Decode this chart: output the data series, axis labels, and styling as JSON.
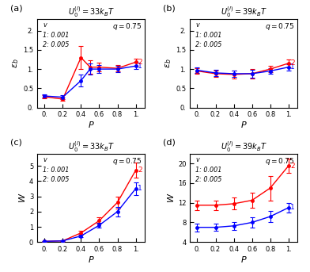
{
  "panels": [
    {
      "label": "a",
      "title": "$U_0^{(l)}=33k_BT$",
      "ylabel": "$\\varepsilon_b$",
      "ylim": [
        0,
        2.3
      ],
      "yticks": [
        0.0,
        0.5,
        1.0,
        1.5,
        2.0
      ],
      "yticklabels": [
        "0.",
        "0.5",
        "1.",
        "1.5",
        "2."
      ],
      "xlabel": "$P$",
      "x": [
        0.0,
        0.2,
        0.4,
        0.5,
        0.6,
        0.8,
        1.0
      ],
      "blue_y": [
        0.3,
        0.27,
        0.7,
        1.0,
        1.0,
        1.0,
        1.08
      ],
      "blue_err": [
        0.05,
        0.05,
        0.15,
        0.15,
        0.1,
        0.08,
        0.08
      ],
      "red_y": [
        0.28,
        0.22,
        1.3,
        1.05,
        1.05,
        1.02,
        1.18
      ],
      "red_err": [
        0.05,
        0.05,
        0.3,
        0.18,
        0.12,
        0.08,
        0.1
      ],
      "q_label": "$q = 0.75$",
      "v_text": "$v$\n1: 0.001\n2: 0.005"
    },
    {
      "label": "b",
      "title": "$U_0^{(l)}=39k_BT$",
      "ylabel": "$\\varepsilon_b$",
      "ylim": [
        0,
        2.3
      ],
      "yticks": [
        0.0,
        0.5,
        1.0,
        1.5,
        2.0
      ],
      "yticklabels": [
        "0.",
        "0.5",
        "1.",
        "1.5",
        "2."
      ],
      "xlabel": "$P$",
      "x": [
        0.0,
        0.2,
        0.4,
        0.6,
        0.8,
        1.0
      ],
      "blue_y": [
        0.97,
        0.9,
        0.88,
        0.88,
        0.95,
        1.05
      ],
      "blue_err": [
        0.08,
        0.08,
        0.08,
        0.1,
        0.08,
        0.08
      ],
      "red_y": [
        0.95,
        0.88,
        0.86,
        0.88,
        1.0,
        1.15
      ],
      "red_err": [
        0.08,
        0.08,
        0.1,
        0.12,
        0.08,
        0.1
      ],
      "q_label": "$q = 0.75$",
      "v_text": "$v$\n1: 0.001\n2: 0.005"
    },
    {
      "label": "c",
      "title": "$U_0^{(l)}=33k_BT$",
      "ylabel": "$W$",
      "ylim": [
        0,
        5.8
      ],
      "yticks": [
        0,
        1,
        2,
        3,
        4,
        5
      ],
      "yticklabels": [
        "0",
        "1",
        "2",
        "3",
        "4",
        "5"
      ],
      "xlabel": "$P$",
      "x": [
        0.0,
        0.2,
        0.4,
        0.6,
        0.8,
        1.0
      ],
      "blue_y": [
        0.05,
        0.08,
        0.4,
        1.1,
        2.0,
        3.5
      ],
      "blue_err": [
        0.02,
        0.02,
        0.1,
        0.15,
        0.3,
        0.4
      ],
      "red_y": [
        0.05,
        0.08,
        0.6,
        1.4,
        2.6,
        4.7
      ],
      "red_err": [
        0.02,
        0.02,
        0.12,
        0.2,
        0.4,
        0.5
      ],
      "q_label": "$q = 0.75$",
      "v_text": "$v$\n1: 0.001\n2: 0.005"
    },
    {
      "label": "d",
      "title": "$U_0^{(l)}=39k_BT$",
      "ylabel": "$W$",
      "ylim": [
        4,
        22
      ],
      "yticks": [
        4,
        8,
        12,
        16,
        20
      ],
      "yticklabels": [
        "4",
        "8",
        "12",
        "16",
        "20"
      ],
      "xlabel": "$P$",
      "x": [
        0.0,
        0.2,
        0.4,
        0.6,
        0.8,
        1.0
      ],
      "blue_y": [
        7.0,
        7.0,
        7.3,
        8.0,
        9.2,
        11.0
      ],
      "blue_err": [
        0.8,
        0.7,
        0.8,
        1.0,
        1.2,
        1.0
      ],
      "red_y": [
        11.5,
        11.5,
        11.8,
        12.5,
        15.0,
        19.5
      ],
      "red_err": [
        1.0,
        1.0,
        1.2,
        1.5,
        2.5,
        1.5
      ],
      "q_label": "$q = 0.75$",
      "v_text": "$v$\n1: 0.001\n2: 0.005"
    }
  ],
  "blue_color": "#0000FF",
  "red_color": "#FF0000",
  "figsize": [
    3.92,
    3.43
  ],
  "dpi": 100
}
